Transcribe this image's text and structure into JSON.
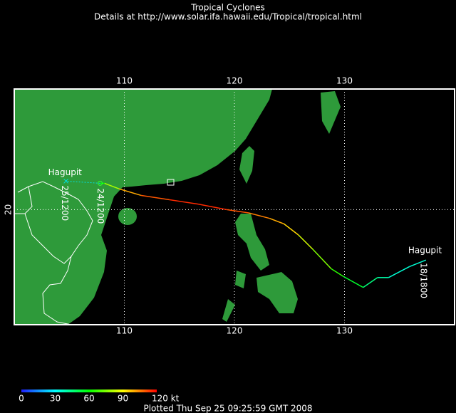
{
  "header": {
    "title": "Tropical Cyclones",
    "subtitle": "Details at http://www.solar.ifa.hawaii.edu/Tropical/tropical.html"
  },
  "map": {
    "xlim": [
      100,
      140
    ],
    "ylim": [
      9.5,
      31
    ],
    "xticks": [
      110,
      120,
      130
    ],
    "yticks": [
      20
    ],
    "grid": true
  },
  "storm": {
    "name_start": "Hagupit",
    "name_end": "Hagupit",
    "label_start": "18/1800",
    "label_mid": "24/1200",
    "label_end": "25/1200",
    "track": {
      "lon": [
        137.4,
        135.9,
        134.0,
        133.0,
        131.7,
        129.9,
        128.8,
        127.1,
        125.8,
        124.5,
        123.2,
        121.3,
        119.3,
        116.7,
        114.1,
        111.5,
        109.5,
        108.2,
        107.8
      ],
      "lat": [
        15.4,
        14.8,
        13.8,
        13.8,
        12.9,
        13.9,
        14.6,
        16.4,
        17.7,
        18.7,
        19.2,
        19.7,
        20.0,
        20.5,
        20.9,
        21.3,
        21.9,
        22.4,
        22.4
      ],
      "wind": [
        35,
        35,
        40,
        45,
        55,
        65,
        75,
        85,
        95,
        100,
        105,
        110,
        115,
        115,
        110,
        100,
        80,
        60,
        45
      ]
    },
    "forecast": {
      "lon": [
        107.8,
        104.7
      ],
      "lat": [
        22.4,
        22.6
      ]
    }
  },
  "colorbar": {
    "range": [
      0,
      120
    ],
    "ticks": [
      0,
      30,
      60,
      90,
      {
        "value": 120,
        "label": "120 kt"
      }
    ]
  },
  "footer": "Plotted Thu Sep 25 09:25:59 GMT 2008"
}
